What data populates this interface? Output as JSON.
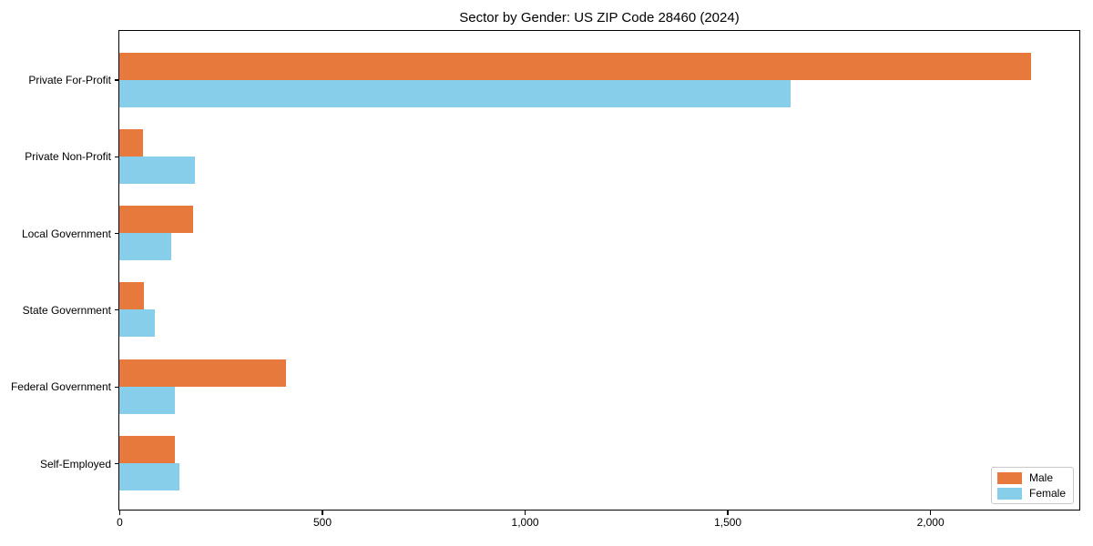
{
  "chart_data": {
    "type": "bar",
    "orientation": "horizontal",
    "title": "Sector by Gender: US ZIP Code 28460 (2024)",
    "categories": [
      "Private For-Profit",
      "Private Non-Profit",
      "Local Government",
      "State Government",
      "Federal Government",
      "Self-Employed"
    ],
    "series": [
      {
        "name": "Male",
        "color": "#E8793D",
        "values": [
          2250,
          58,
          182,
          60,
          412,
          138
        ]
      },
      {
        "name": "Female",
        "color": "#87CEEB",
        "values": [
          1655,
          186,
          128,
          88,
          138,
          148
        ]
      }
    ],
    "xlabel": "",
    "ylabel": "",
    "xlim": [
      0,
      2366
    ],
    "xticks": [
      0,
      500,
      1000,
      1500,
      2000
    ],
    "xtick_labels": [
      "0",
      "500",
      "1,000",
      "1,500",
      "2,000"
    ],
    "grid": false,
    "legend_position": "lower right",
    "plot_background": "#ffffff",
    "axis_color": "#000000"
  }
}
